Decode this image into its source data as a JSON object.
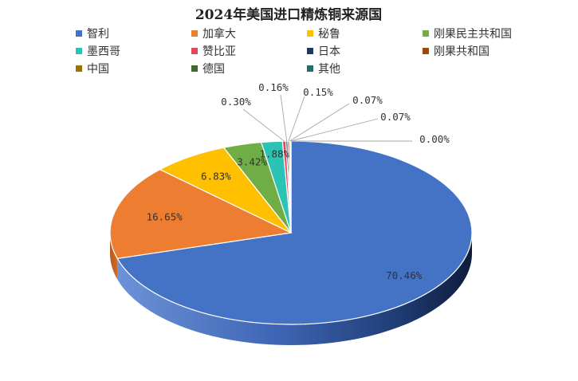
{
  "chart_data": {
    "type": "pie",
    "title": "2024年美国进口精炼铜来源国",
    "categories": [
      "智利",
      "加拿大",
      "秘鲁",
      "刚果民主共和国",
      "墨西哥",
      "赞比亚",
      "日本",
      "刚果共和国",
      "中国",
      "德国",
      "其他"
    ],
    "values": [
      70.46,
      16.65,
      6.83,
      3.42,
      1.88,
      0.3,
      0.16,
      0.15,
      0.07,
      0.07,
      0.0
    ],
    "labels": [
      "70.46%",
      "16.65%",
      "6.83%",
      "3.42%",
      "1.88%",
      "0.30%",
      "0.16%",
      "0.15%",
      "0.07%",
      "0.07%",
      "0.00%"
    ],
    "colors": [
      "#4472C4",
      "#ED7D31",
      "#FFC000",
      "#70AD47",
      "#2BC4B4",
      "#E04A5A",
      "#203864",
      "#9E480E",
      "#997300",
      "#43682B",
      "#1F6F6A"
    ],
    "legend_position": "top",
    "style": "3d-pie",
    "grid": false
  }
}
